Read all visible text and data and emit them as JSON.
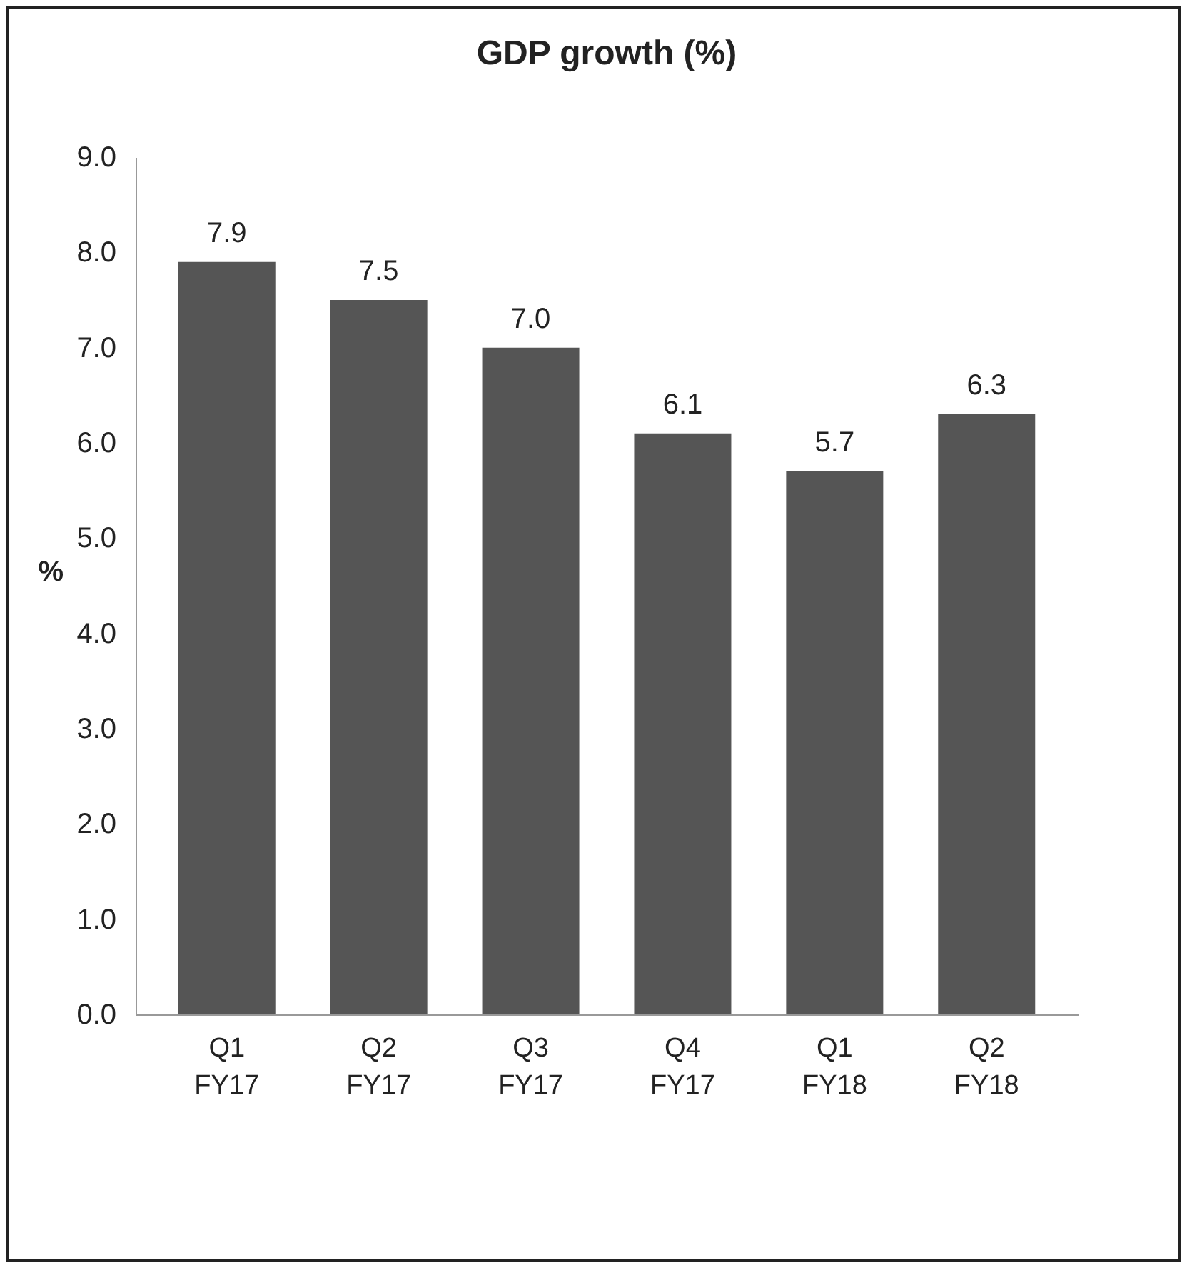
{
  "chart_data": {
    "type": "bar",
    "title": "GDP growth (%)",
    "ylabel": "%",
    "categories": [
      "Q1 FY17",
      "Q2 FY17",
      "Q3 FY17",
      "Q4 FY17",
      "Q1 FY18",
      "Q2 FY18"
    ],
    "values": [
      7.9,
      7.5,
      7.0,
      6.1,
      5.7,
      6.3
    ],
    "value_labels": [
      "7.9",
      "7.5",
      "7.0",
      "6.1",
      "5.7",
      "6.3"
    ],
    "color": "#555555",
    "ylim": [
      0,
      9
    ],
    "yticks": [
      {
        "value": 0,
        "label": "0.0"
      },
      {
        "value": 1,
        "label": "1.0"
      },
      {
        "value": 2,
        "label": "2.0"
      },
      {
        "value": 3,
        "label": "3.0"
      },
      {
        "value": 4,
        "label": "4.0"
      },
      {
        "value": 5,
        "label": "5.0"
      },
      {
        "value": 6,
        "label": "6.0"
      },
      {
        "value": 7,
        "label": "7.0"
      },
      {
        "value": 8,
        "label": "8.0"
      },
      {
        "value": 9,
        "label": "9.0"
      }
    ],
    "grid": false
  }
}
